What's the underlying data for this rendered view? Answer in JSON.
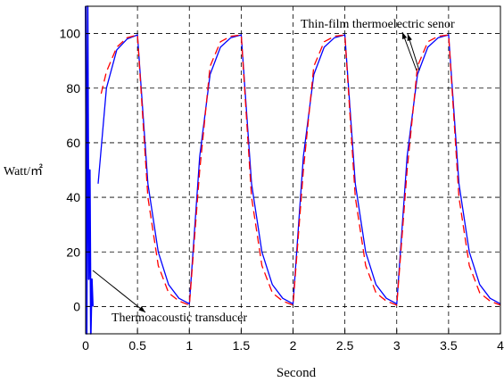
{
  "chart_data": {
    "type": "line",
    "xlabel": "Second",
    "ylabel": "Watt/㎡",
    "xlim": [
      0,
      4
    ],
    "ylim": [
      -10,
      110
    ],
    "x_ticks": [
      "0",
      "0.5",
      "1",
      "1.5",
      "2",
      "2.5",
      "3",
      "3.5",
      "4"
    ],
    "y_ticks": [
      "0",
      "20",
      "40",
      "60",
      "80",
      "100"
    ],
    "grid": true,
    "annotations": [
      {
        "text": "Thin-film thermoelectric senor",
        "points_to": {
          "x": 3.3,
          "y": 88
        }
      },
      {
        "text": "Thermoacoustic transducer",
        "points_to": {
          "x": 0.05,
          "y": 10
        }
      }
    ],
    "series": [
      {
        "color": "#0000ff",
        "style": "solid",
        "x": [
          0.12,
          0.2,
          0.3,
          0.4,
          0.5,
          0.6,
          0.7,
          0.8,
          0.9,
          1.0,
          1.1,
          1.2,
          1.3,
          1.4,
          1.5,
          1.6,
          1.7,
          1.8,
          1.9,
          2.0,
          2.1,
          2.2,
          2.3,
          2.4,
          2.5,
          2.6,
          2.7,
          2.8,
          2.9,
          3.0,
          3.1,
          3.2,
          3.3,
          3.4,
          3.5,
          3.6,
          3.7,
          3.8,
          3.9,
          4.0
        ],
        "y": [
          45,
          80,
          94,
          98,
          99.5,
          45,
          20,
          8,
          3,
          1,
          55,
          85,
          95,
          98.5,
          99.5,
          45,
          20,
          8,
          3,
          1,
          55,
          85,
          95,
          98.5,
          99.5,
          45,
          20,
          8,
          3,
          1,
          55,
          85,
          95,
          98.5,
          99.5,
          45,
          20,
          8,
          3,
          1
        ]
      },
      {
        "color": "#ff0000",
        "style": "dashed",
        "x": [
          0.15,
          0.2,
          0.3,
          0.4,
          0.5,
          0.6,
          0.7,
          0.8,
          0.9,
          1.0,
          1.1,
          1.2,
          1.3,
          1.4,
          1.5,
          1.6,
          1.7,
          1.8,
          1.9,
          2.0,
          2.1,
          2.2,
          2.3,
          2.4,
          2.5,
          2.6,
          2.7,
          2.8,
          2.9,
          3.0,
          3.1,
          3.2,
          3.3,
          3.4,
          3.5,
          3.6,
          3.7,
          3.8,
          3.9,
          4.0
        ],
        "y": [
          78,
          86,
          95,
          98.5,
          99.5,
          40,
          15,
          5,
          2,
          0.5,
          50,
          88,
          97,
          99,
          99.5,
          40,
          15,
          5,
          2,
          0.5,
          50,
          88,
          97,
          99,
          99.5,
          40,
          15,
          5,
          2,
          0.5,
          50,
          88,
          97,
          99,
          99.5,
          40,
          15,
          5,
          2,
          0.5
        ]
      },
      {
        "color": "#0000ff",
        "style": "spikes",
        "x": [
          0.0,
          0.01,
          0.02,
          0.03,
          0.04,
          0.05,
          0.06,
          0.07
        ],
        "y": [
          110,
          -10,
          110,
          10,
          50,
          -10,
          10,
          0
        ]
      }
    ]
  }
}
